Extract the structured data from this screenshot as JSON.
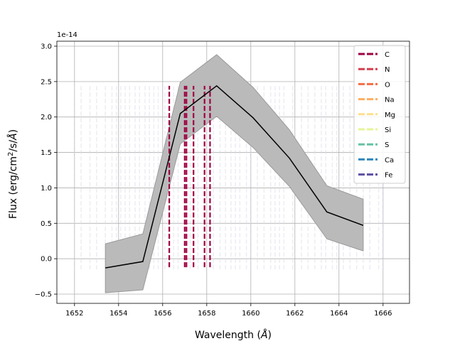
{
  "chart_data": {
    "type": "line",
    "offset_text": "1e-14",
    "xlabel": "Wavelength ($\\AA$)",
    "ylabel": "Flux (erg/cm$^2$/s/$\\AA$)",
    "xlim": [
      1651.2,
      1667.2
    ],
    "ylim": [
      -0.63,
      3.07
    ],
    "xticks": [
      1652,
      1654,
      1656,
      1658,
      1660,
      1662,
      1664,
      1666
    ],
    "yticks": [
      -0.5,
      0.0,
      0.5,
      1.0,
      1.5,
      2.0,
      2.5,
      3.0
    ],
    "grid": true,
    "legend_position": "top-right",
    "series": [
      {
        "x": [
          1653.4,
          1655.1,
          1656.8,
          1658.45,
          1660.1,
          1661.75,
          1663.45,
          1665.1
        ],
        "y": [
          -0.13,
          -0.04,
          2.05,
          2.44,
          1.99,
          1.42,
          0.66,
          0.47
        ],
        "lower": [
          -0.48,
          -0.44,
          1.62,
          2.01,
          1.57,
          1.02,
          0.28,
          0.11
        ],
        "upper": [
          0.21,
          0.35,
          2.49,
          2.88,
          2.42,
          1.82,
          1.03,
          0.84
        ],
        "line_color": "#000000",
        "band_color": "#bababa"
      }
    ],
    "element_lines": {
      "C": {
        "x": [
          1656.3,
          1657.0,
          1657.08,
          1657.4,
          1657.9,
          1658.15
        ],
        "y_range": [
          -0.12,
          2.44
        ]
      },
      "faint": {
        "x": [
          1652.0,
          1652.3,
          1652.7,
          1653.0,
          1653.4,
          1653.7,
          1653.9,
          1654.1,
          1654.3,
          1654.5,
          1654.75,
          1654.95,
          1655.2,
          1655.4,
          1655.6,
          1655.8,
          1656.1,
          1656.5,
          1656.7,
          1657.25,
          1657.6,
          1658.3,
          1658.6,
          1658.85,
          1659.1,
          1659.3,
          1659.5,
          1659.8,
          1660.0,
          1660.3,
          1660.6,
          1660.9,
          1661.1,
          1661.3,
          1661.5,
          1661.9,
          1662.3,
          1662.6,
          1662.9,
          1663.2,
          1663.4,
          1663.7,
          1663.9,
          1664.2,
          1664.5,
          1664.8,
          1665.1,
          1665.4,
          1665.8,
          1666.0
        ],
        "y_range": [
          -0.15,
          2.45
        ]
      }
    },
    "legend": [
      {
        "label": "C",
        "color": "#9e0142"
      },
      {
        "label": "N",
        "color": "#d53e4f"
      },
      {
        "label": "O",
        "color": "#f46d43"
      },
      {
        "label": "Na",
        "color": "#fdae61"
      },
      {
        "label": "Mg",
        "color": "#fee08b"
      },
      {
        "label": "Si",
        "color": "#e6f598"
      },
      {
        "label": "S",
        "color": "#66c2a5"
      },
      {
        "label": "Ca",
        "color": "#3288bd"
      },
      {
        "label": "Fe",
        "color": "#5e4fa2"
      }
    ]
  }
}
